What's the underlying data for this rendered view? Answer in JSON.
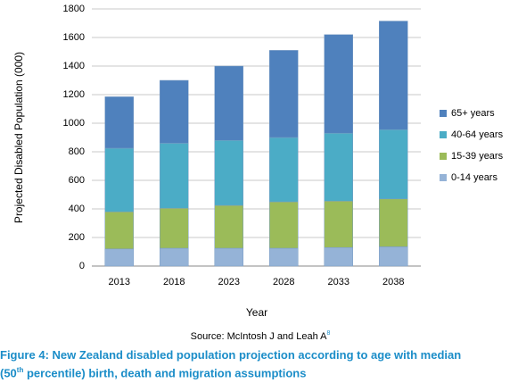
{
  "chart_data": {
    "type": "bar",
    "stacked": true,
    "y_label": "Projected Disabled Population (000)",
    "x_label": "Year",
    "categories": [
      "2013",
      "2018",
      "2023",
      "2028",
      "2033",
      "2038"
    ],
    "series": [
      {
        "name": "0-14 years",
        "color": "#95b3d7",
        "values": [
          120,
          125,
          125,
          125,
          130,
          135
        ]
      },
      {
        "name": "15-39 years",
        "color": "#9bbb59",
        "values": [
          260,
          280,
          300,
          325,
          325,
          335
        ]
      },
      {
        "name": "40-64 years",
        "color": "#4bacc6",
        "values": [
          445,
          455,
          455,
          450,
          475,
          485
        ]
      },
      {
        "name": "65+ years",
        "color": "#4f81bd",
        "values": [
          360,
          440,
          520,
          610,
          690,
          760
        ]
      }
    ],
    "ylim": [
      0,
      1800
    ],
    "yticks": [
      0,
      200,
      400,
      600,
      800,
      1000,
      1200,
      1400,
      1600,
      1800
    ],
    "grid": true,
    "source": "Source: McIntosh J and Leah A",
    "source_ref": "8",
    "caption_line1": "Figure 4: New Zealand disabled population projection according to age with median",
    "caption_line2_start": "(50",
    "caption_line2_sup": "th",
    "caption_line2_end": " percentile) birth, death and migration assumptions"
  }
}
